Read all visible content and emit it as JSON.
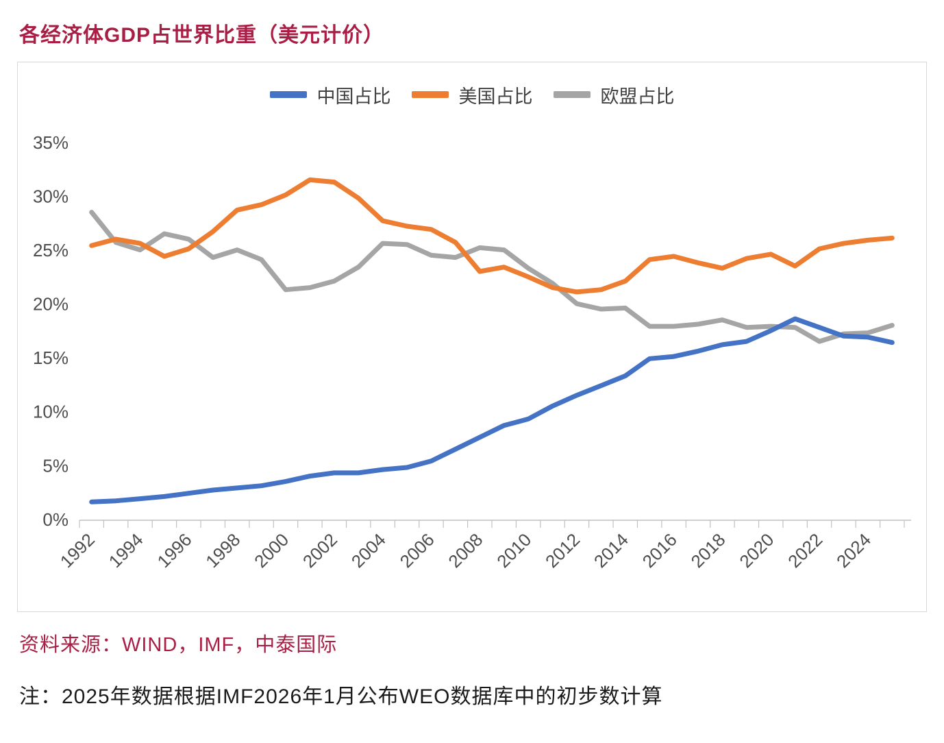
{
  "title": "各经济体GDP占世界比重（美元计价）",
  "source": "资料来源：WIND，IMF，中泰国际",
  "note": "注：2025年数据根据IMF2026年1月公布WEO数据库中的初步数计算",
  "colors": {
    "accent": "#A91E45",
    "china": "#4472C4",
    "us": "#ED7D31",
    "eu": "#A5A5A5",
    "axis_line": "#c0c0c0",
    "axis_text": "#4d4d4d"
  },
  "chart_data": {
    "type": "line",
    "title": "各经济体GDP占世界比重（美元计价）",
    "xlabel": "",
    "ylabel": "",
    "ylim": [
      0,
      35
    ],
    "grid": false,
    "legend_position": "top",
    "yticks": [
      "0%",
      "5%",
      "10%",
      "15%",
      "20%",
      "25%",
      "30%",
      "35%"
    ],
    "xtick_label_step": 2,
    "x": [
      1992,
      1993,
      1994,
      1995,
      1996,
      1997,
      1998,
      1999,
      2000,
      2001,
      2002,
      2003,
      2004,
      2005,
      2006,
      2007,
      2008,
      2009,
      2010,
      2011,
      2012,
      2013,
      2014,
      2015,
      2016,
      2017,
      2018,
      2019,
      2020,
      2021,
      2022,
      2023,
      2024,
      2025
    ],
    "series": [
      {
        "name": "中国占比",
        "color": "#4472C4",
        "values": [
          1.7,
          1.8,
          2.0,
          2.2,
          2.5,
          2.8,
          3.0,
          3.2,
          3.6,
          4.1,
          4.4,
          4.4,
          4.7,
          4.9,
          5.5,
          6.6,
          7.7,
          8.8,
          9.4,
          10.6,
          11.6,
          12.5,
          13.4,
          15.0,
          15.2,
          15.7,
          16.3,
          16.6,
          17.6,
          18.7,
          17.9,
          17.1,
          17.0,
          16.5
        ]
      },
      {
        "name": "美国占比",
        "color": "#ED7D31",
        "values": [
          25.5,
          26.1,
          25.7,
          24.5,
          25.2,
          26.8,
          28.8,
          29.3,
          30.2,
          31.6,
          31.4,
          29.9,
          27.8,
          27.3,
          27.0,
          25.8,
          23.1,
          23.5,
          22.6,
          21.6,
          21.2,
          21.4,
          22.2,
          24.2,
          24.5,
          23.9,
          23.4,
          24.3,
          24.7,
          23.6,
          25.2,
          25.7,
          26.0,
          26.2
        ]
      },
      {
        "name": "欧盟占比",
        "color": "#A5A5A5",
        "values": [
          28.6,
          25.8,
          25.1,
          26.6,
          26.1,
          24.4,
          25.1,
          24.2,
          21.4,
          21.6,
          22.2,
          23.5,
          25.7,
          25.6,
          24.6,
          24.4,
          25.3,
          25.1,
          23.4,
          22.0,
          20.1,
          19.6,
          19.7,
          18.0,
          18.0,
          18.2,
          18.6,
          17.9,
          18.0,
          17.9,
          16.6,
          17.3,
          17.4,
          18.1
        ]
      }
    ]
  }
}
